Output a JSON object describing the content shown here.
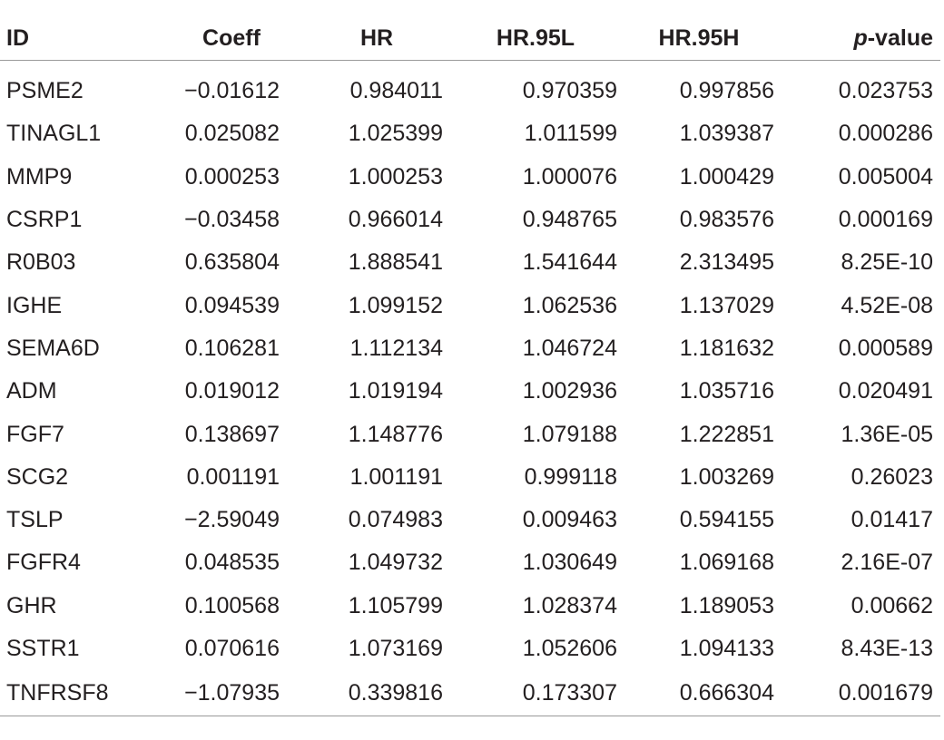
{
  "table": {
    "headers": {
      "id": "ID",
      "coeff": "Coeff",
      "hr": "HR",
      "hr_95l": "HR.95L",
      "hr_95h": "HR.95H",
      "p_italic": "p",
      "p_rest": "-value"
    },
    "rows": [
      {
        "id": "PSME2",
        "coeff": "−0.01612",
        "hr": "0.984011",
        "hr_95l": "0.970359",
        "hr_95h": "0.997856",
        "p": "0.023753"
      },
      {
        "id": "TINAGL1",
        "coeff": "0.025082",
        "hr": "1.025399",
        "hr_95l": "1.011599",
        "hr_95h": "1.039387",
        "p": "0.000286"
      },
      {
        "id": "MMP9",
        "coeff": "0.000253",
        "hr": "1.000253",
        "hr_95l": "1.000076",
        "hr_95h": "1.000429",
        "p": "0.005004"
      },
      {
        "id": "CSRP1",
        "coeff": "−0.03458",
        "hr": "0.966014",
        "hr_95l": "0.948765",
        "hr_95h": "0.983576",
        "p": "0.000169"
      },
      {
        "id": "R0B03",
        "coeff": "0.635804",
        "hr": "1.888541",
        "hr_95l": "1.541644",
        "hr_95h": "2.313495",
        "p": "8.25E-10"
      },
      {
        "id": "IGHE",
        "coeff": "0.094539",
        "hr": "1.099152",
        "hr_95l": "1.062536",
        "hr_95h": "1.137029",
        "p": "4.52E-08"
      },
      {
        "id": "SEMA6D",
        "coeff": "0.106281",
        "hr": "1.112134",
        "hr_95l": "1.046724",
        "hr_95h": "1.181632",
        "p": "0.000589"
      },
      {
        "id": "ADM",
        "coeff": "0.019012",
        "hr": "1.019194",
        "hr_95l": "1.002936",
        "hr_95h": "1.035716",
        "p": "0.020491"
      },
      {
        "id": "FGF7",
        "coeff": "0.138697",
        "hr": "1.148776",
        "hr_95l": "1.079188",
        "hr_95h": "1.222851",
        "p": "1.36E-05"
      },
      {
        "id": "SCG2",
        "coeff": "0.001191",
        "hr": "1.001191",
        "hr_95l": "0.999118",
        "hr_95h": "1.003269",
        "p": "0.26023"
      },
      {
        "id": "TSLP",
        "coeff": "−2.59049",
        "hr": "0.074983",
        "hr_95l": "0.009463",
        "hr_95h": "0.594155",
        "p": "0.01417"
      },
      {
        "id": "FGFR4",
        "coeff": "0.048535",
        "hr": "1.049732",
        "hr_95l": "1.030649",
        "hr_95h": "1.069168",
        "p": "2.16E-07"
      },
      {
        "id": "GHR",
        "coeff": "0.100568",
        "hr": "1.105799",
        "hr_95l": "1.028374",
        "hr_95h": "1.189053",
        "p": "0.00662"
      },
      {
        "id": "SSTR1",
        "coeff": "0.070616",
        "hr": "1.073169",
        "hr_95l": "1.052606",
        "hr_95h": "1.094133",
        "p": "8.43E-13"
      },
      {
        "id": "TNFRSF8",
        "coeff": "−1.07935",
        "hr": "0.339816",
        "hr_95l": "0.173307",
        "hr_95h": "0.666304",
        "p": "0.001679"
      }
    ]
  }
}
